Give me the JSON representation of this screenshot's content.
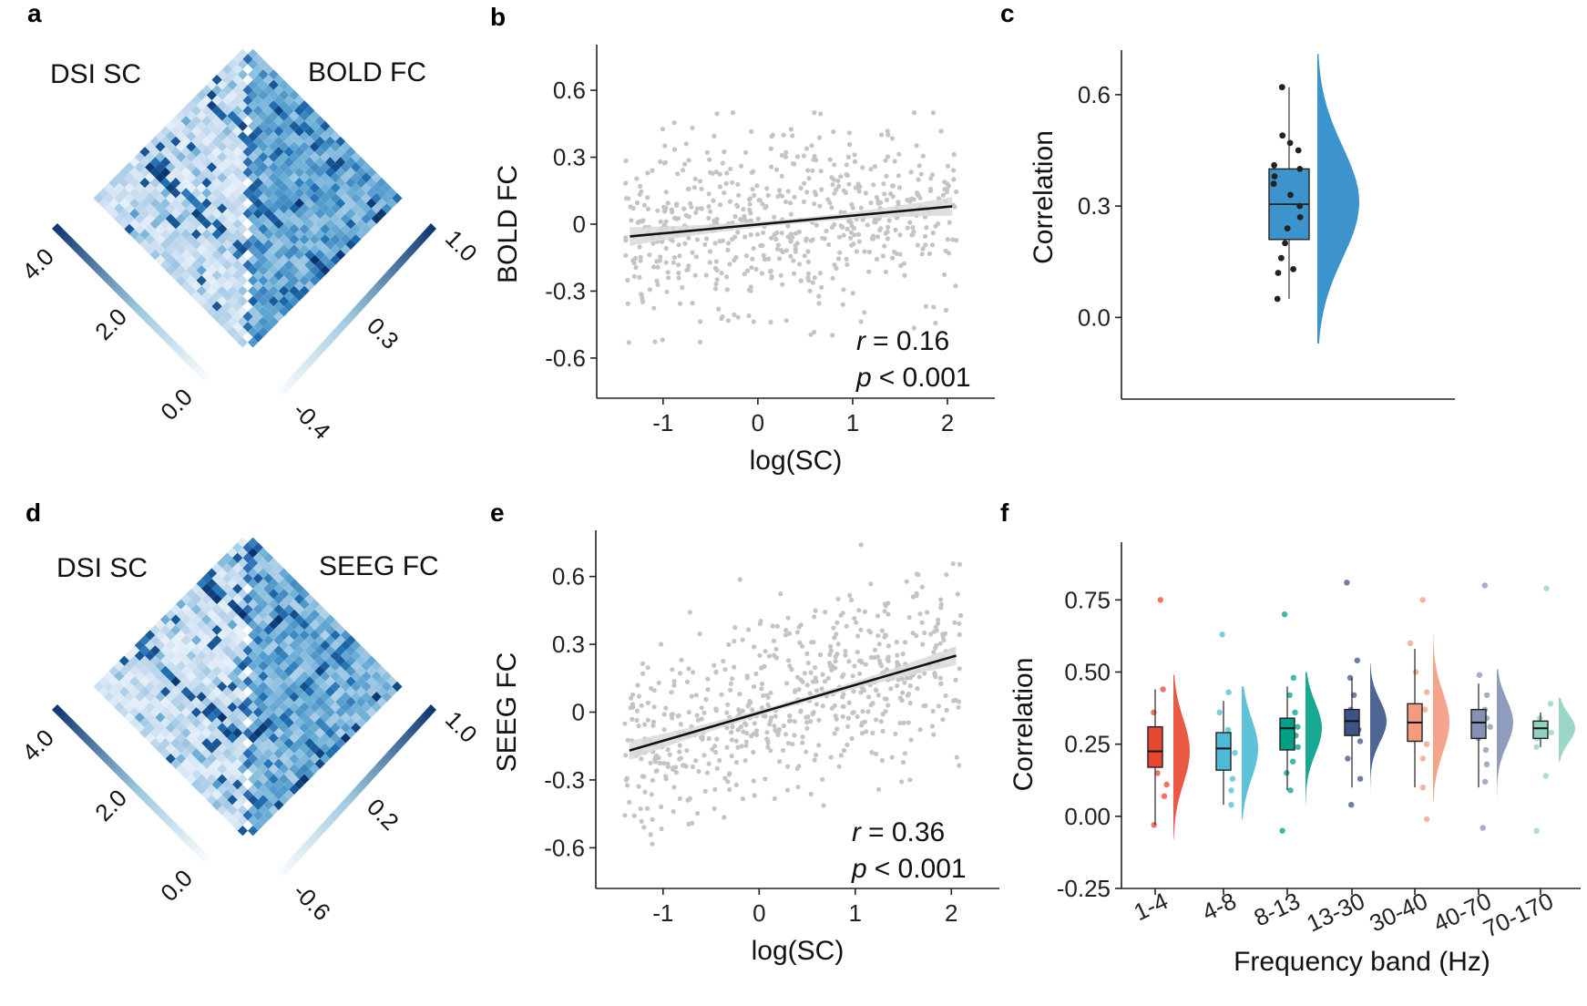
{
  "panels": {
    "a": {
      "letter": "a",
      "left_title": "DSI SC",
      "right_title": "BOLD FC",
      "left_colorbar": {
        "ticks": [
          "4.0",
          "2.0",
          "0.0"
        ]
      },
      "right_colorbar": {
        "ticks": [
          "1.0",
          "0.3",
          "-0.4"
        ]
      }
    },
    "d": {
      "letter": "d",
      "left_title": "DSI SC",
      "right_title": "SEEG FC",
      "left_colorbar": {
        "ticks": [
          "4.0",
          "2.0",
          "0.0"
        ]
      },
      "right_colorbar": {
        "ticks": [
          "1.0",
          "0.2",
          "-0.6"
        ]
      }
    },
    "b": {
      "letter": "b",
      "r_label": "r",
      "r_value": "= 0.16",
      "p_label": "p",
      "p_value": "< 0.001"
    },
    "e": {
      "letter": "e",
      "r_label": "r",
      "r_value": "= 0.36",
      "p_label": "p",
      "p_value": "< 0.001"
    },
    "c": {
      "letter": "c"
    },
    "f": {
      "letter": "f"
    }
  },
  "colors": {
    "blue_dark": "#08306b",
    "blue_mid": "#2f7fc1",
    "blue_light": "#deebf7",
    "scatter_point": "#c4c4c4",
    "fit_line": "#111111",
    "ci_band": "#d9d9d9",
    "raincloud_blue": "#3d94cc"
  },
  "chart_data": [
    {
      "panel": "b",
      "type": "scatter",
      "xlabel": "log(SC)",
      "ylabel": "BOLD FC",
      "xlim": [
        -1.7,
        2.5
      ],
      "ylim": [
        -0.78,
        0.78
      ],
      "xticks": [
        -1,
        0,
        1,
        2
      ],
      "xtick_labels": [
        "-1",
        "0",
        "1",
        "2"
      ],
      "yticks": [
        -0.6,
        -0.3,
        0,
        0.3,
        0.6
      ],
      "ytick_labels": [
        "-0.6",
        "-0.3",
        "0",
        "0.3",
        "0.6"
      ],
      "fit": {
        "x": [
          -1.35,
          2.05
        ],
        "y": [
          -0.055,
          0.08
        ]
      },
      "n_points": 600,
      "point_x_range": [
        -1.4,
        2.1
      ],
      "point_y_range": [
        -0.55,
        0.5
      ],
      "r": 0.16,
      "p": "< 0.001"
    },
    {
      "panel": "e",
      "type": "scatter",
      "xlabel": "log(SC)",
      "ylabel": "SEEG FC",
      "xlim": [
        -1.7,
        2.5
      ],
      "ylim": [
        -0.78,
        0.78
      ],
      "xticks": [
        -1,
        0,
        1,
        2
      ],
      "xtick_labels": [
        "-1",
        "0",
        "1",
        "2"
      ],
      "yticks": [
        -0.6,
        -0.3,
        0,
        0.3,
        0.6
      ],
      "ytick_labels": [
        "-0.6",
        "-0.3",
        "0",
        "0.3",
        "0.6"
      ],
      "fit": {
        "x": [
          -1.35,
          2.05
        ],
        "y": [
          -0.17,
          0.25
        ]
      },
      "n_points": 620,
      "point_x_range": [
        -1.4,
        2.1
      ],
      "point_y_range": [
        -0.68,
        0.74
      ],
      "r": 0.36,
      "p": "< 0.001"
    },
    {
      "panel": "c",
      "type": "box",
      "ylabel": "Correlation",
      "ylim": [
        -0.22,
        0.72
      ],
      "yticks": [
        0.0,
        0.3,
        0.6
      ],
      "ytick_labels": [
        "0.0",
        "0.3",
        "0.6"
      ],
      "box": {
        "q1": 0.21,
        "median": 0.305,
        "q3": 0.4,
        "whisker_low": 0.05,
        "whisker_high": 0.62
      },
      "points": [
        0.62,
        0.49,
        0.47,
        0.45,
        0.41,
        0.4,
        0.38,
        0.36,
        0.33,
        0.3,
        0.27,
        0.24,
        0.2,
        0.16,
        0.13,
        0.12,
        0.05
      ],
      "density_range": [
        -0.07,
        0.71
      ]
    },
    {
      "panel": "f",
      "type": "box",
      "xlabel": "Frequency band (Hz)",
      "ylabel": "Correlation",
      "ylim": [
        -0.25,
        0.95
      ],
      "yticks": [
        -0.25,
        0.0,
        0.25,
        0.5,
        0.75
      ],
      "ytick_labels": [
        "-0.25",
        "0.00",
        "0.25",
        "0.50",
        "0.75"
      ],
      "categories": [
        "1-4",
        "4-8",
        "8-13",
        "13-30",
        "30-40",
        "40-70",
        "70-170"
      ],
      "colors": [
        "#e8472f",
        "#4dbbd5",
        "#00a087",
        "#3c5488",
        "#f39b7f",
        "#8491b4",
        "#91d1c2"
      ],
      "boxes": [
        {
          "q1": 0.17,
          "median": 0.225,
          "q3": 0.31,
          "low": -0.03,
          "high": 0.44
        },
        {
          "q1": 0.16,
          "median": 0.235,
          "q3": 0.29,
          "low": 0.04,
          "high": 0.4
        },
        {
          "q1": 0.23,
          "median": 0.305,
          "q3": 0.34,
          "low": 0.09,
          "high": 0.45
        },
        {
          "q1": 0.28,
          "median": 0.33,
          "q3": 0.37,
          "low": 0.1,
          "high": 0.48
        },
        {
          "q1": 0.26,
          "median": 0.325,
          "q3": 0.39,
          "low": 0.1,
          "high": 0.58
        },
        {
          "q1": 0.27,
          "median": 0.325,
          "q3": 0.37,
          "low": 0.1,
          "high": 0.46
        },
        {
          "q1": 0.27,
          "median": 0.305,
          "q3": 0.33,
          "low": 0.24,
          "high": 0.36
        }
      ],
      "points": [
        [
          0.75,
          0.44,
          0.36,
          0.3,
          0.26,
          0.22,
          0.19,
          0.15,
          0.11,
          0.07,
          -0.03
        ],
        [
          0.63,
          0.43,
          0.36,
          0.3,
          0.26,
          0.22,
          0.18,
          0.13,
          0.09,
          0.04
        ],
        [
          0.7,
          0.48,
          0.42,
          0.36,
          0.31,
          0.28,
          0.24,
          0.19,
          0.15,
          0.09,
          -0.05
        ],
        [
          0.81,
          0.54,
          0.48,
          0.42,
          0.37,
          0.33,
          0.3,
          0.26,
          0.2,
          0.13,
          0.04
        ],
        [
          0.75,
          0.6,
          0.5,
          0.43,
          0.37,
          0.33,
          0.29,
          0.25,
          0.2,
          0.1,
          -0.01
        ],
        [
          0.8,
          0.49,
          0.42,
          0.37,
          0.34,
          0.31,
          0.27,
          0.23,
          0.18,
          0.12,
          -0.04
        ],
        [
          0.79,
          0.39,
          0.34,
          0.31,
          0.29,
          0.27,
          0.24,
          0.14,
          -0.05
        ]
      ]
    }
  ]
}
